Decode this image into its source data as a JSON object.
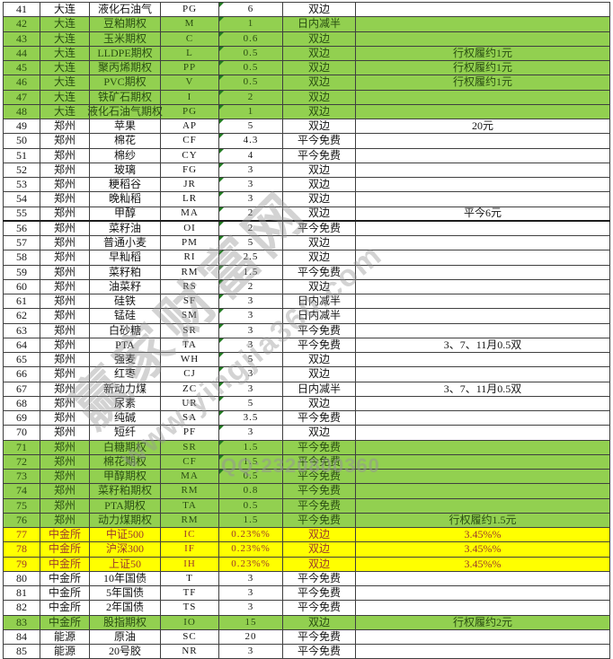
{
  "colors": {
    "green_row_bg": "#92d050",
    "green_row_text": "#2a4d12",
    "yellow_row_bg": "#ffff00",
    "yellow_row_text": "#9c392c",
    "grid_border": "#3f3f3f",
    "comment_marker": "#217a21"
  },
  "watermark": {
    "brand": "赢家财富网",
    "site": "www.yingjia360.com",
    "qq": "QQ:2320800360"
  },
  "table": {
    "rows": [
      {
        "num": "41",
        "exchange": "大连",
        "product": "液化石油气",
        "code": "PG",
        "value": "6",
        "fee": "双边",
        "note": "",
        "style": "white",
        "marker": true,
        "thick_bottom": false
      },
      {
        "num": "42",
        "exchange": "大连",
        "product": "豆粕期权",
        "code": "M",
        "value": "1",
        "fee": "日内减半",
        "note": "",
        "style": "green",
        "marker": true,
        "thick_bottom": false
      },
      {
        "num": "43",
        "exchange": "大连",
        "product": "玉米期权",
        "code": "C",
        "value": "0.6",
        "fee": "双边",
        "note": "",
        "style": "green",
        "marker": true,
        "thick_bottom": false
      },
      {
        "num": "44",
        "exchange": "大连",
        "product": "LLDPE期权",
        "code": "L",
        "value": "0.5",
        "fee": "双边",
        "note": "行权履约1元",
        "style": "green",
        "marker": true,
        "thick_bottom": false
      },
      {
        "num": "45",
        "exchange": "大连",
        "product": "聚丙烯期权",
        "code": "PP",
        "value": "0.5",
        "fee": "双边",
        "note": "行权履约1元",
        "style": "green",
        "marker": true,
        "thick_bottom": false
      },
      {
        "num": "46",
        "exchange": "大连",
        "product": "PVC期权",
        "code": "V",
        "value": "0.5",
        "fee": "双边",
        "note": "行权履约1元",
        "style": "green",
        "marker": true,
        "thick_bottom": false
      },
      {
        "num": "47",
        "exchange": "大连",
        "product": "铁矿石期权",
        "code": "I",
        "value": "2",
        "fee": "双边",
        "note": "",
        "style": "green",
        "marker": true,
        "thick_bottom": false
      },
      {
        "num": "48",
        "exchange": "大连",
        "product": "液化石油气期权",
        "code": "PG",
        "value": "1",
        "fee": "双边",
        "note": "",
        "style": "green",
        "marker": true,
        "thick_bottom": false
      },
      {
        "num": "49",
        "exchange": "郑州",
        "product": "苹果",
        "code": "AP",
        "value": "5",
        "fee": "双边",
        "note": "20元",
        "style": "white",
        "marker": true,
        "thick_bottom": false
      },
      {
        "num": "50",
        "exchange": "郑州",
        "product": "棉花",
        "code": "CF",
        "value": "4.3",
        "fee": "平今免费",
        "note": "",
        "style": "white",
        "marker": true,
        "thick_bottom": false
      },
      {
        "num": "51",
        "exchange": "郑州",
        "product": "棉纱",
        "code": "CY",
        "value": "4",
        "fee": "平今免费",
        "note": "",
        "style": "white",
        "marker": true,
        "thick_bottom": false
      },
      {
        "num": "52",
        "exchange": "郑州",
        "product": "玻璃",
        "code": "FG",
        "value": "3",
        "fee": "双边",
        "note": "",
        "style": "white",
        "marker": true,
        "thick_bottom": false
      },
      {
        "num": "53",
        "exchange": "郑州",
        "product": "粳稻谷",
        "code": "JR",
        "value": "3",
        "fee": "双边",
        "note": "",
        "style": "white",
        "marker": true,
        "thick_bottom": false
      },
      {
        "num": "54",
        "exchange": "郑州",
        "product": "晚籼稻",
        "code": "LR",
        "value": "3",
        "fee": "双边",
        "note": "",
        "style": "white",
        "marker": true,
        "thick_bottom": false
      },
      {
        "num": "55",
        "exchange": "郑州",
        "product": "甲醇",
        "code": "MA",
        "value": "2",
        "fee": "双边",
        "note": "平今6元",
        "style": "white",
        "marker": true,
        "thick_bottom": true
      },
      {
        "num": "56",
        "exchange": "郑州",
        "product": "菜籽油",
        "code": "OI",
        "value": "2",
        "fee": "平今免费",
        "note": "",
        "style": "white",
        "marker": true,
        "thick_bottom": false
      },
      {
        "num": "57",
        "exchange": "郑州",
        "product": "普通小麦",
        "code": "PM",
        "value": "5",
        "fee": "双边",
        "note": "",
        "style": "white",
        "marker": true,
        "thick_bottom": false
      },
      {
        "num": "58",
        "exchange": "郑州",
        "product": "早籼稻",
        "code": "RI",
        "value": "2.5",
        "fee": "双边",
        "note": "",
        "style": "white",
        "marker": true,
        "thick_bottom": false
      },
      {
        "num": "59",
        "exchange": "郑州",
        "product": "菜籽粕",
        "code": "RM",
        "value": "1.5",
        "fee": "平今免费",
        "note": "",
        "style": "white",
        "marker": true,
        "thick_bottom": false
      },
      {
        "num": "60",
        "exchange": "郑州",
        "product": "油菜籽",
        "code": "RS",
        "value": "2",
        "fee": "双边",
        "note": "",
        "style": "white",
        "marker": true,
        "thick_bottom": false
      },
      {
        "num": "61",
        "exchange": "郑州",
        "product": "硅铁",
        "code": "SF",
        "value": "3",
        "fee": "日内减半",
        "note": "",
        "style": "white",
        "marker": true,
        "thick_bottom": false
      },
      {
        "num": "62",
        "exchange": "郑州",
        "product": "锰硅",
        "code": "SM",
        "value": "3",
        "fee": "日内减半",
        "note": "",
        "style": "white",
        "marker": true,
        "thick_bottom": false
      },
      {
        "num": "63",
        "exchange": "郑州",
        "product": "白砂糖",
        "code": "SR",
        "value": "3",
        "fee": "平今免费",
        "note": "",
        "style": "white",
        "marker": true,
        "thick_bottom": false
      },
      {
        "num": "64",
        "exchange": "郑州",
        "product": "PTA",
        "code": "TA",
        "value": "3",
        "fee": "平今免费",
        "note": "3、7、11月0.5双",
        "style": "white",
        "marker": true,
        "thick_bottom": false
      },
      {
        "num": "65",
        "exchange": "郑州",
        "product": "强麦",
        "code": "WH",
        "value": "5",
        "fee": "双边",
        "note": "",
        "style": "white",
        "marker": true,
        "thick_bottom": false
      },
      {
        "num": "66",
        "exchange": "郑州",
        "product": "红枣",
        "code": "CJ",
        "value": "3",
        "fee": "双边",
        "note": "",
        "style": "white",
        "marker": true,
        "thick_bottom": false
      },
      {
        "num": "67",
        "exchange": "郑州",
        "product": "新动力煤",
        "code": "ZC",
        "value": "3",
        "fee": "日内减半",
        "note": "3、7、11月0.5双",
        "style": "white",
        "marker": true,
        "thick_bottom": false
      },
      {
        "num": "68",
        "exchange": "郑州",
        "product": "尿素",
        "code": "UR",
        "value": "5",
        "fee": "双边",
        "note": "",
        "style": "white",
        "marker": true,
        "thick_bottom": false
      },
      {
        "num": "69",
        "exchange": "郑州",
        "product": "纯碱",
        "code": "SA",
        "value": "3.5",
        "fee": "平今免费",
        "note": "",
        "style": "white",
        "marker": true,
        "thick_bottom": false
      },
      {
        "num": "70",
        "exchange": "郑州",
        "product": "短纤",
        "code": "PF",
        "value": "3",
        "fee": "双边",
        "note": "",
        "style": "white",
        "marker": true,
        "thick_bottom": false
      },
      {
        "num": "71",
        "exchange": "郑州",
        "product": "白糖期权",
        "code": "SR",
        "value": "1.5",
        "fee": "平今免费",
        "note": "",
        "style": "green",
        "marker": true,
        "thick_bottom": false
      },
      {
        "num": "72",
        "exchange": "郑州",
        "product": "棉花期权",
        "code": "CF",
        "value": "1.5",
        "fee": "平今免费",
        "note": "",
        "style": "green",
        "marker": true,
        "thick_bottom": false
      },
      {
        "num": "73",
        "exchange": "郑州",
        "product": "甲醇期权",
        "code": "MA",
        "value": "0.5",
        "fee": "平今免费",
        "note": "",
        "style": "green",
        "marker": true,
        "thick_bottom": false
      },
      {
        "num": "74",
        "exchange": "郑州",
        "product": "菜籽粕期权",
        "code": "RM",
        "value": "0.8",
        "fee": "平今免费",
        "note": "",
        "style": "green",
        "marker": false,
        "thick_bottom": false
      },
      {
        "num": "75",
        "exchange": "郑州",
        "product": "PTA期权",
        "code": "TA",
        "value": "0.5",
        "fee": "平今免费",
        "note": "",
        "style": "green",
        "marker": false,
        "thick_bottom": false
      },
      {
        "num": "76",
        "exchange": "郑州",
        "product": "动力煤期权",
        "code": "RM",
        "value": "1.5",
        "fee": "平今免费",
        "note": "行权履约1.5元",
        "style": "green",
        "marker": false,
        "thick_bottom": false
      },
      {
        "num": "77",
        "exchange": "中金所",
        "product": "中证500",
        "code": "IC",
        "value": "0.23%%",
        "fee": "双边",
        "note": "3.45%%",
        "style": "yellow",
        "marker": false,
        "thick_bottom": false
      },
      {
        "num": "78",
        "exchange": "中金所",
        "product": "沪深300",
        "code": "IF",
        "value": "0.23%%",
        "fee": "双边",
        "note": "3.45%%",
        "style": "yellow",
        "marker": false,
        "thick_bottom": false
      },
      {
        "num": "79",
        "exchange": "中金所",
        "product": "上证50",
        "code": "IH",
        "value": "0.23%%",
        "fee": "双边",
        "note": "3.45%%",
        "style": "yellow",
        "marker": false,
        "thick_bottom": false
      },
      {
        "num": "80",
        "exchange": "中金所",
        "product": "10年国债",
        "code": "T",
        "value": "3",
        "fee": "平今免费",
        "note": "",
        "style": "white",
        "marker": false,
        "thick_bottom": false
      },
      {
        "num": "81",
        "exchange": "中金所",
        "product": "5年国债",
        "code": "TF",
        "value": "3",
        "fee": "平今免费",
        "note": "",
        "style": "white",
        "marker": false,
        "thick_bottom": false
      },
      {
        "num": "82",
        "exchange": "中金所",
        "product": "2年国债",
        "code": "TS",
        "value": "3",
        "fee": "平今免费",
        "note": "",
        "style": "white",
        "marker": false,
        "thick_bottom": false
      },
      {
        "num": "83",
        "exchange": "中金所",
        "product": "股指期权",
        "code": "IO",
        "value": "15",
        "fee": "双边",
        "note": "行权履约2元",
        "style": "green",
        "marker": false,
        "thick_bottom": false
      },
      {
        "num": "84",
        "exchange": "能源",
        "product": "原油",
        "code": "SC",
        "value": "20",
        "fee": "平今免费",
        "note": "",
        "style": "white",
        "marker": false,
        "thick_bottom": false
      },
      {
        "num": "85",
        "exchange": "能源",
        "product": "20号胶",
        "code": "NR",
        "value": "3",
        "fee": "平今免费",
        "note": "",
        "style": "white",
        "marker": false,
        "thick_bottom": false
      }
    ]
  }
}
